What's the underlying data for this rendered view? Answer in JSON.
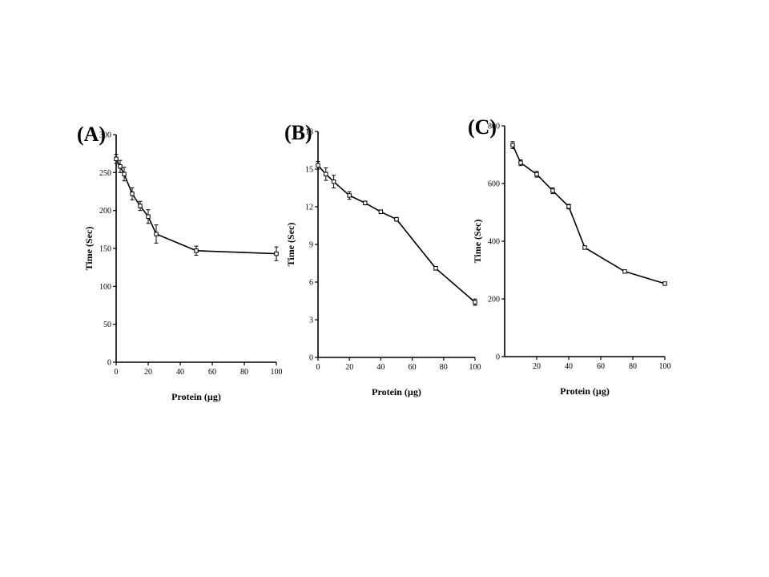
{
  "chart_data": [
    {
      "type": "line",
      "panel_label": "(A)",
      "xlabel": "Protein (µg)",
      "ylabel": "Time (Sec)",
      "xlim": [
        0,
        100
      ],
      "ylim": [
        0,
        300
      ],
      "xticks": [
        0,
        20,
        40,
        60,
        80,
        100
      ],
      "yticks": [
        0,
        50,
        100,
        150,
        200,
        250,
        300
      ],
      "grid": false,
      "series": [
        {
          "x": [
            0,
            2.5,
            5,
            10,
            15,
            20,
            25,
            50,
            100
          ],
          "y": [
            268,
            258,
            248,
            222,
            206,
            192,
            169,
            147,
            143
          ],
          "err": [
            6,
            8,
            9,
            8,
            6,
            9,
            12,
            6,
            9
          ]
        }
      ]
    },
    {
      "type": "line",
      "panel_label": "(B)",
      "xlabel": "Protein (µg)",
      "ylabel": "Time (Sec)",
      "xlim": [
        0,
        100
      ],
      "ylim": [
        0,
        18
      ],
      "xticks": [
        0,
        20,
        40,
        60,
        80,
        100
      ],
      "yticks": [
        0,
        3,
        6,
        9,
        12,
        15,
        18
      ],
      "grid": false,
      "series": [
        {
          "x": [
            0,
            5,
            10,
            20,
            30,
            40,
            50,
            75,
            100
          ],
          "y": [
            15.3,
            14.6,
            14.0,
            12.9,
            12.3,
            11.6,
            11.0,
            7.1,
            4.4
          ],
          "err": [
            0.3,
            0.5,
            0.5,
            0.3,
            0.15,
            0.15,
            0.15,
            0.15,
            0.25
          ]
        }
      ]
    },
    {
      "type": "line",
      "panel_label": "(C)",
      "xlabel": "Protein (µg)",
      "ylabel": "Time (Sec)",
      "xlim": [
        0,
        100
      ],
      "ylim": [
        0,
        800
      ],
      "xticks": [
        20,
        40,
        60,
        80,
        100
      ],
      "yticks": [
        0,
        200,
        400,
        600,
        800
      ],
      "grid": false,
      "series": [
        {
          "x": [
            5,
            10,
            20,
            30,
            40,
            50,
            75,
            100
          ],
          "y": [
            733,
            672,
            632,
            575,
            520,
            378,
            295,
            253
          ],
          "err": [
            12,
            10,
            10,
            10,
            8,
            6,
            5,
            5
          ]
        }
      ]
    }
  ]
}
